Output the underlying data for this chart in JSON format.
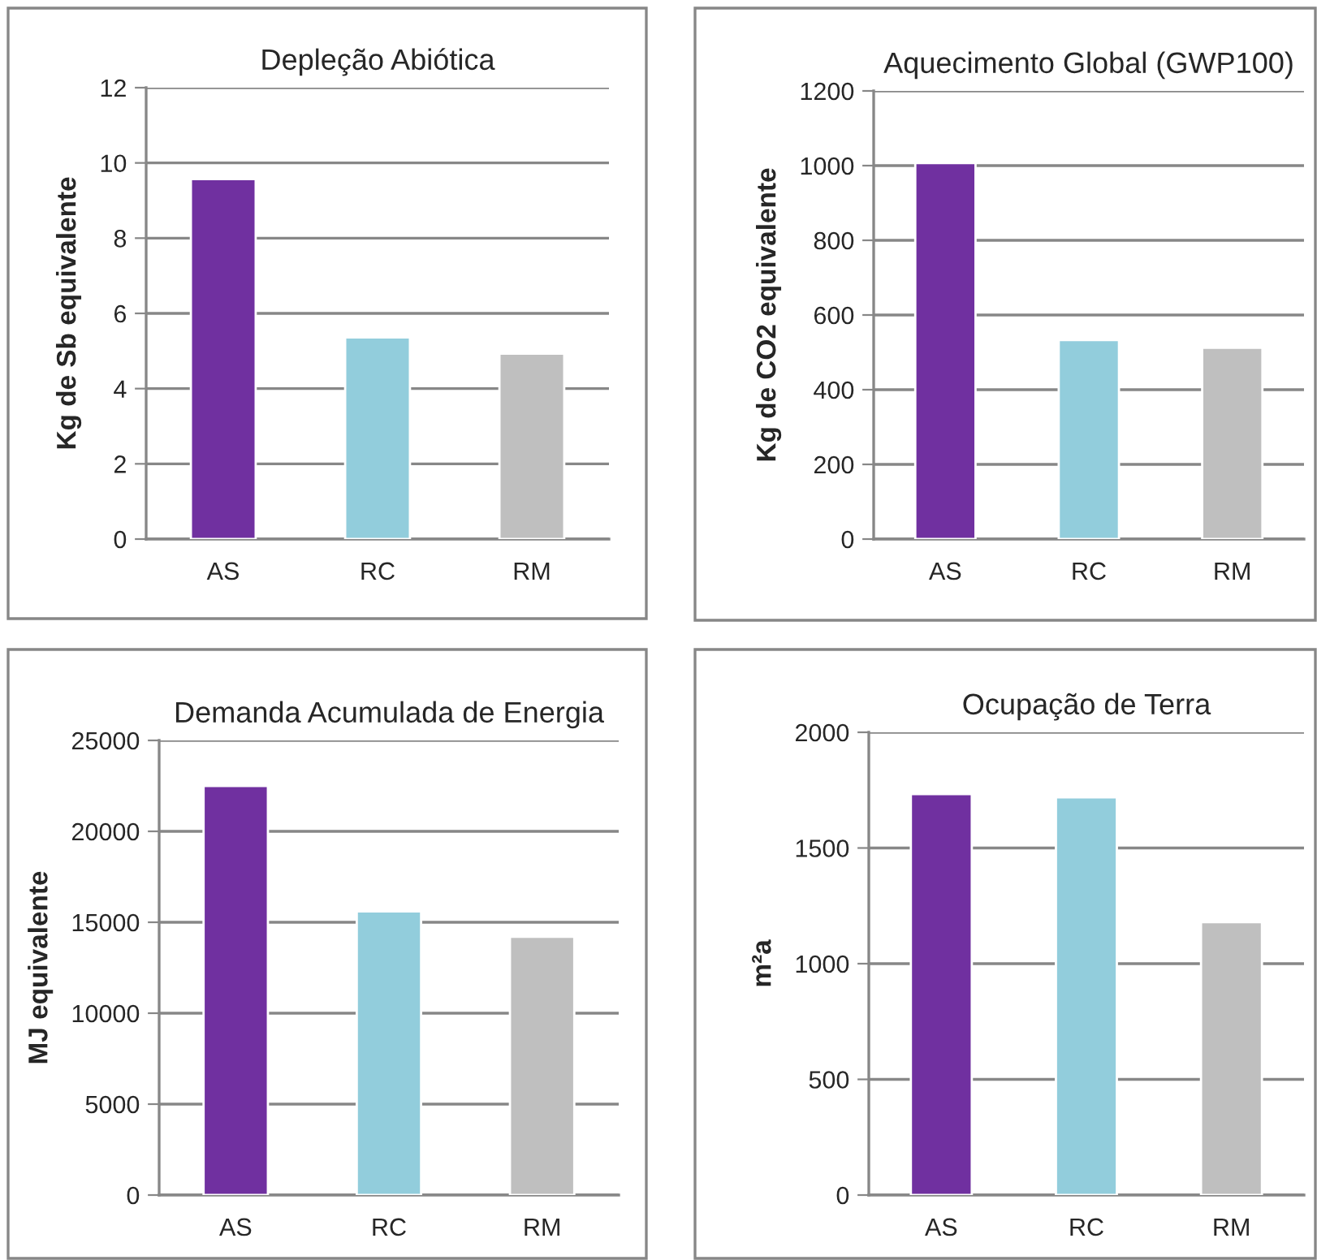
{
  "chart_data": [
    {
      "type": "bar",
      "title": "Depleção Abiótica",
      "ylabel": "Kg de Sb equivalente",
      "categories": [
        "AS",
        "RC",
        "RM"
      ],
      "values": [
        9.57,
        5.36,
        4.93
      ],
      "colors": [
        "#7030a0",
        "#92cddc",
        "#bfbfbf"
      ],
      "ylim": [
        0,
        12
      ],
      "yticks": [
        0,
        2,
        4,
        6,
        8,
        10,
        12
      ],
      "grid": "y"
    },
    {
      "type": "bar",
      "title": "Aquecimento Global (GWP100)",
      "ylabel": "Kg de CO2 equivalente",
      "categories": [
        "AS",
        "RC",
        "RM"
      ],
      "values": [
        1007,
        533,
        512
      ],
      "colors": [
        "#7030a0",
        "#92cddc",
        "#bfbfbf"
      ],
      "ylim": [
        0,
        1200
      ],
      "yticks": [
        0,
        200,
        400,
        600,
        800,
        1000,
        1200
      ],
      "grid": "y"
    },
    {
      "type": "bar",
      "title": "Demanda Acumulada de Energia",
      "ylabel": "MJ equivalente",
      "categories": [
        "AS",
        "RC",
        "RM"
      ],
      "values": [
        22500,
        15600,
        14200
      ],
      "colors": [
        "#7030a0",
        "#92cddc",
        "#bfbfbf"
      ],
      "ylim": [
        0,
        25000
      ],
      "yticks": [
        0,
        5000,
        10000,
        15000,
        20000,
        25000
      ],
      "grid": "y"
    },
    {
      "type": "bar",
      "title": "Ocupação de Terra",
      "ylabel": "m²a",
      "categories": [
        "AS",
        "RC",
        "RM"
      ],
      "values": [
        1733,
        1719,
        1179
      ],
      "colors": [
        "#7030a0",
        "#92cddc",
        "#bfbfbf"
      ],
      "ylim": [
        0,
        2000
      ],
      "yticks": [
        0,
        500,
        1000,
        1500,
        2000
      ],
      "grid": "y"
    }
  ]
}
